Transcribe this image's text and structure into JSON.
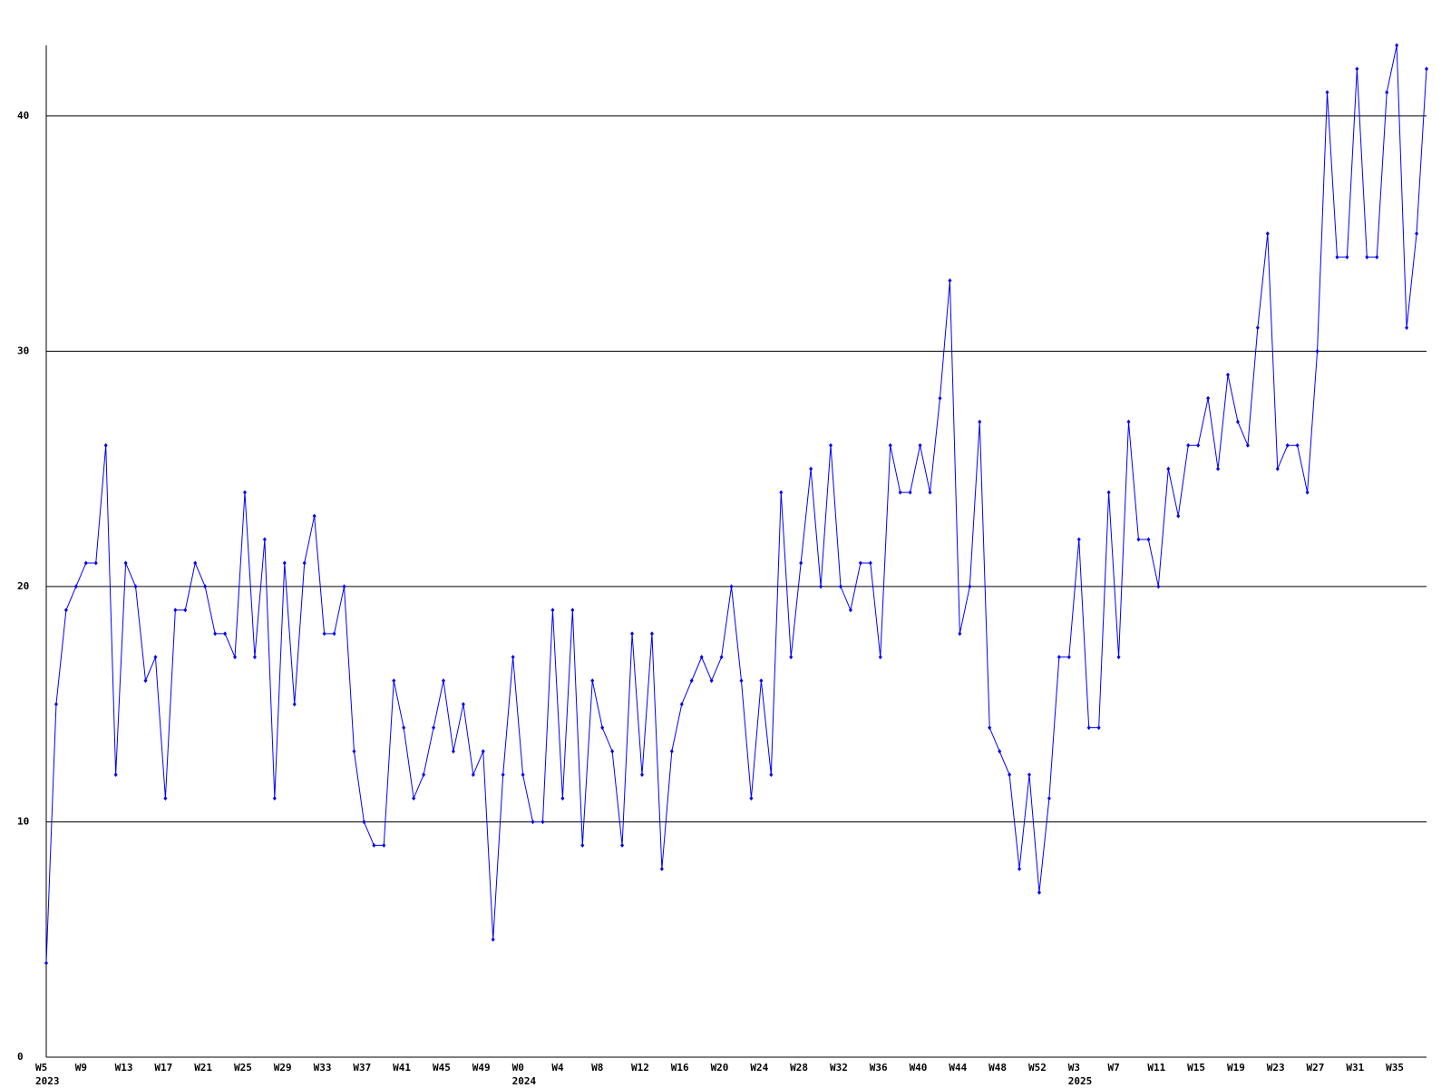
{
  "chart_data": {
    "type": "line",
    "categories": [
      "W5",
      null,
      null,
      null,
      "W9",
      null,
      null,
      null,
      "W13",
      null,
      null,
      null,
      "W17",
      null,
      null,
      null,
      "W21",
      null,
      null,
      null,
      "W25",
      null,
      null,
      null,
      "W29",
      null,
      null,
      null,
      "W33",
      null,
      null,
      null,
      "W37",
      null,
      null,
      null,
      "W41",
      null,
      null,
      null,
      "W45",
      null,
      null,
      null,
      "W49",
      null,
      null,
      null,
      "W0",
      null,
      null,
      null,
      "W4",
      null,
      null,
      null,
      "W8",
      null,
      null,
      null,
      "W12",
      null,
      null,
      null,
      "W16",
      null,
      null,
      null,
      "W20",
      null,
      null,
      null,
      "W24",
      null,
      null,
      null,
      "W28",
      null,
      null,
      null,
      "W32",
      null,
      null,
      null,
      "W36",
      null,
      null,
      null,
      "W40",
      null,
      null,
      null,
      "W44",
      null,
      null,
      null,
      "W48",
      null,
      null,
      null,
      "W52",
      null,
      null,
      null,
      "W3",
      null,
      null,
      null,
      "W7",
      null,
      null,
      null,
      "W11",
      null,
      null,
      null,
      "W15",
      null,
      null,
      null,
      "W19",
      null,
      null,
      null,
      "W23",
      null,
      null,
      null,
      "W27",
      null,
      null,
      null,
      "W31",
      null,
      null,
      null,
      "W35",
      null,
      null,
      null
    ],
    "category_years": [
      "2023",
      null,
      null,
      null,
      null,
      null,
      null,
      null,
      null,
      null,
      null,
      null,
      null,
      null,
      null,
      null,
      null,
      null,
      null,
      null,
      null,
      null,
      null,
      null,
      null,
      null,
      null,
      null,
      null,
      null,
      null,
      null,
      null,
      null,
      null,
      null,
      null,
      null,
      null,
      null,
      null,
      null,
      null,
      null,
      null,
      null,
      null,
      null,
      "2024",
      null,
      null,
      null,
      null,
      null,
      null,
      null,
      null,
      null,
      null,
      null,
      null,
      null,
      null,
      null,
      null,
      null,
      null,
      null,
      null,
      null,
      null,
      null,
      null,
      null,
      null,
      null,
      null,
      null,
      null,
      null,
      null,
      null,
      null,
      null,
      null,
      null,
      null,
      null,
      null,
      null,
      null,
      null,
      null,
      null,
      null,
      null,
      null,
      null,
      null,
      null,
      null,
      null,
      null,
      null,
      "2025",
      null,
      null,
      null,
      null,
      null,
      null,
      null,
      null,
      null,
      null,
      null,
      null,
      null,
      null,
      null,
      null,
      null,
      null,
      null,
      null,
      null,
      null,
      null,
      null,
      null,
      null,
      null,
      null,
      null,
      null,
      null,
      null,
      null,
      null,
      null
    ],
    "series": [
      {
        "color": "#0000ff",
        "values": [
          4,
          15,
          19,
          20,
          21,
          21,
          26,
          12,
          21,
          20,
          16,
          17,
          11,
          19,
          19,
          21,
          20,
          18,
          18,
          17,
          24,
          17,
          22,
          11,
          21,
          15,
          21,
          23,
          18,
          18,
          20,
          13,
          10,
          9,
          9,
          16,
          14,
          11,
          12,
          14,
          16,
          13,
          15,
          12,
          13,
          5,
          12,
          17,
          12,
          10,
          10,
          19,
          11,
          19,
          9,
          16,
          14,
          13,
          9,
          18,
          12,
          18,
          8,
          13,
          15,
          16,
          17,
          16,
          17,
          20,
          16,
          11,
          16,
          12,
          24,
          17,
          21,
          25,
          20,
          26,
          20,
          19,
          21,
          21,
          17,
          26,
          24,
          24,
          26,
          24,
          28,
          33,
          18,
          20,
          27,
          14,
          13,
          12,
          8,
          12,
          7,
          11,
          17,
          17,
          22,
          14,
          14,
          24,
          17,
          27,
          22,
          22,
          20,
          25,
          23,
          26,
          26,
          28,
          25,
          29,
          27,
          26,
          31,
          35,
          25,
          26,
          26,
          24,
          30,
          41,
          34,
          34,
          42,
          34,
          34,
          41,
          43,
          31,
          35,
          42
        ]
      }
    ],
    "ylim": [
      0,
      43
    ],
    "yticks": [
      0,
      10,
      20,
      30,
      40
    ],
    "grid": true
  }
}
